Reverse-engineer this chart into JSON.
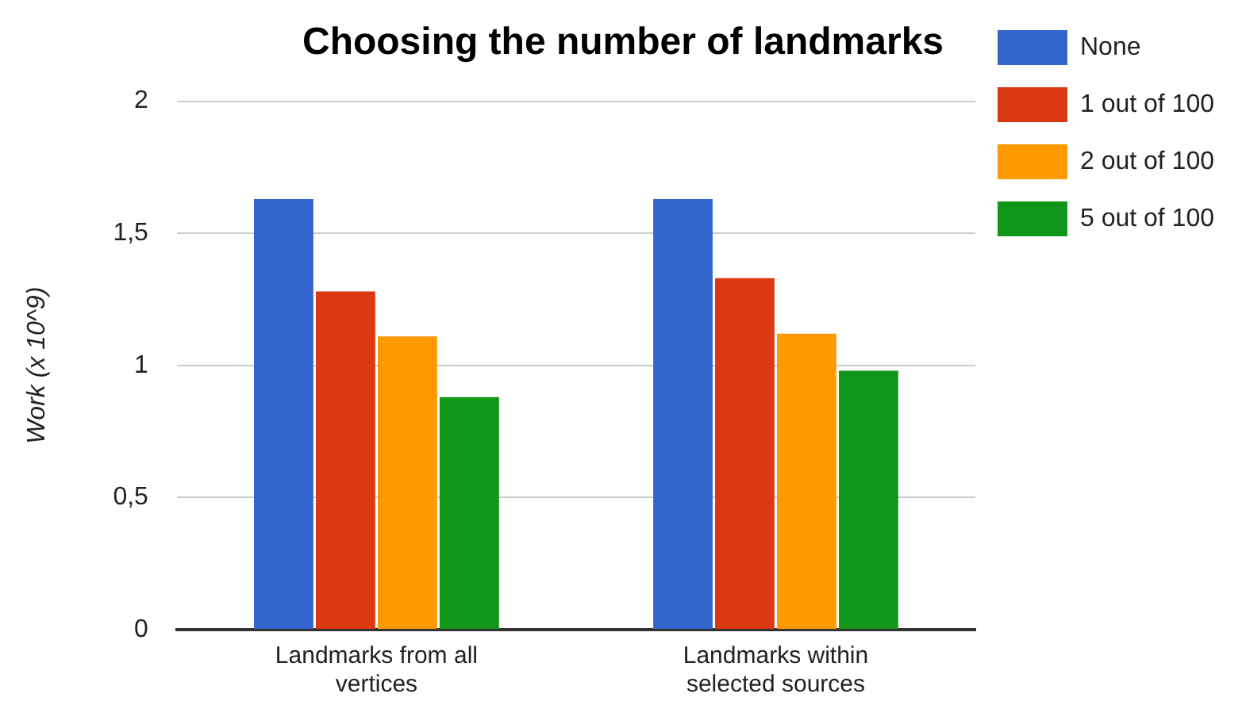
{
  "chart_data": {
    "type": "bar",
    "title": "Choosing the number of landmarks",
    "ylabel": "Work (x 10^9)",
    "categories": [
      [
        "Landmarks from all",
        "vertices"
      ],
      [
        "Landmarks within",
        "selected sources"
      ]
    ],
    "series": [
      {
        "name": "None",
        "color": "#3366cc",
        "values": [
          1.63,
          1.63
        ]
      },
      {
        "name": "1 out of 100",
        "color": "#dc3912",
        "values": [
          1.28,
          1.33
        ]
      },
      {
        "name": "2 out of 100",
        "color": "#ff9900",
        "values": [
          1.11,
          1.12
        ]
      },
      {
        "name": "5 out of 100",
        "color": "#109618",
        "values": [
          0.88,
          0.98
        ]
      }
    ],
    "ylim": [
      0,
      2
    ],
    "yticks": [
      0,
      {
        "value": 0.5,
        "label": "0,5"
      },
      1,
      {
        "value": 1.5,
        "label": "1,5"
      },
      2
    ],
    "grid": "y",
    "legend": "right"
  }
}
